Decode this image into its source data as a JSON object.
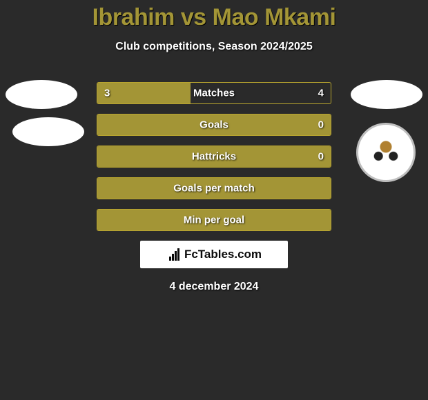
{
  "title": "Ibrahim vs Mao Mkami",
  "subtitle": "Club competitions, Season 2024/2025",
  "colors": {
    "accent": "#a39536",
    "bar_border": "#b9a52f",
    "background": "#2a2a2a",
    "text": "#ffffff"
  },
  "bars": [
    {
      "label": "Matches",
      "left": "3",
      "right": "4",
      "fill_pct": 40,
      "show_values": true
    },
    {
      "label": "Goals",
      "left": "",
      "right": "0",
      "fill_pct": 100,
      "show_values": true
    },
    {
      "label": "Hattricks",
      "left": "",
      "right": "0",
      "fill_pct": 100,
      "show_values": true
    },
    {
      "label": "Goals per match",
      "left": "",
      "right": "",
      "fill_pct": 100,
      "show_values": false
    },
    {
      "label": "Min per goal",
      "left": "",
      "right": "",
      "fill_pct": 100,
      "show_values": false
    }
  ],
  "site_badge": "FcTables.com",
  "date": "4 december 2024"
}
